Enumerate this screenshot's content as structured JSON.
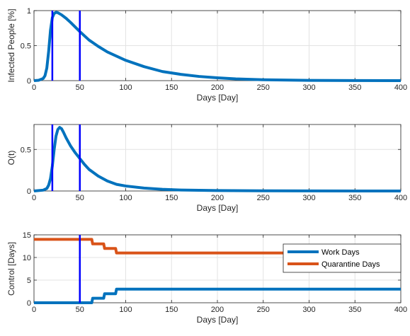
{
  "colors": {
    "series_blue": "#0072BD",
    "series_orange": "#D95319",
    "marker_line": "#0000FF",
    "grid": "#E3E3E3",
    "axis": "#262626"
  },
  "chart_data": [
    {
      "type": "line",
      "title": "",
      "xlabel": "Days [Day]",
      "ylabel": "Infected People [%]",
      "xlim": [
        0,
        400
      ],
      "ylim": [
        0,
        1
      ],
      "xticks": [
        0,
        50,
        100,
        150,
        200,
        250,
        300,
        350,
        400
      ],
      "yticks": [
        0,
        0.5,
        1
      ],
      "xtick_labels": [
        "0",
        "50",
        "100",
        "150",
        "200",
        "250",
        "300",
        "350",
        "400"
      ],
      "ytick_labels": [
        "0",
        "0.5",
        "1"
      ],
      "grid": true,
      "series": [
        {
          "color": "#0072BD",
          "x": [
            0,
            5,
            10,
            12,
            14,
            16,
            18,
            20,
            22,
            24,
            26,
            28,
            30,
            35,
            40,
            50,
            60,
            70,
            80,
            100,
            120,
            140,
            160,
            180,
            200,
            220,
            250,
            300,
            350,
            400
          ],
          "y": [
            0.0,
            0.005,
            0.03,
            0.07,
            0.18,
            0.42,
            0.72,
            0.9,
            0.96,
            0.975,
            0.97,
            0.955,
            0.94,
            0.89,
            0.83,
            0.7,
            0.58,
            0.49,
            0.41,
            0.29,
            0.2,
            0.13,
            0.09,
            0.06,
            0.04,
            0.025,
            0.012,
            0.004,
            0.001,
            0.0
          ]
        }
      ],
      "vlines": [
        20,
        50
      ]
    },
    {
      "type": "line",
      "title": "",
      "xlabel": "Days [Day]",
      "ylabel": "O(t)",
      "xlim": [
        0,
        400
      ],
      "ylim": [
        0,
        0.8
      ],
      "xticks": [
        0,
        50,
        100,
        150,
        200,
        250,
        300,
        350,
        400
      ],
      "yticks": [
        0,
        0.5
      ],
      "xtick_labels": [
        "0",
        "50",
        "100",
        "150",
        "200",
        "250",
        "300",
        "350",
        "400"
      ],
      "ytick_labels": [
        "0",
        "0.5"
      ],
      "grid": true,
      "series": [
        {
          "color": "#0072BD",
          "x": [
            0,
            10,
            14,
            16,
            18,
            20,
            22,
            24,
            26,
            28,
            30,
            32,
            35,
            40,
            45,
            50,
            55,
            60,
            70,
            80,
            90,
            100,
            120,
            140,
            160,
            200,
            250,
            300,
            400
          ],
          "y": [
            0.0,
            0.01,
            0.03,
            0.07,
            0.15,
            0.3,
            0.5,
            0.66,
            0.74,
            0.765,
            0.75,
            0.71,
            0.64,
            0.54,
            0.46,
            0.39,
            0.32,
            0.26,
            0.18,
            0.12,
            0.08,
            0.06,
            0.035,
            0.02,
            0.012,
            0.005,
            0.002,
            0.001,
            0.0
          ]
        }
      ],
      "vlines": [
        20,
        50
      ]
    },
    {
      "type": "line",
      "title": "",
      "xlabel": "Days [Day]",
      "ylabel": "Control [Days]",
      "xlim": [
        0,
        400
      ],
      "ylim": [
        0,
        15
      ],
      "xticks": [
        0,
        50,
        100,
        150,
        200,
        250,
        300,
        350,
        400
      ],
      "yticks": [
        0,
        5,
        10,
        15
      ],
      "xtick_labels": [
        "0",
        "50",
        "100",
        "150",
        "200",
        "250",
        "300",
        "350",
        "400"
      ],
      "ytick_labels": [
        "0",
        "5",
        "10",
        "15"
      ],
      "grid": true,
      "legend_position": "top-right",
      "series": [
        {
          "name": "Work Days",
          "color": "#0072BD",
          "x": [
            0,
            63,
            64,
            76,
            77,
            89,
            90,
            400
          ],
          "y": [
            0,
            0,
            1,
            1,
            2,
            2,
            3,
            3
          ]
        },
        {
          "name": "Quarantine Days",
          "color": "#D95319",
          "x": [
            0,
            63,
            64,
            76,
            77,
            89,
            90,
            400
          ],
          "y": [
            14,
            14,
            13,
            13,
            12,
            12,
            11,
            11
          ]
        }
      ],
      "vlines": [
        50
      ]
    }
  ]
}
